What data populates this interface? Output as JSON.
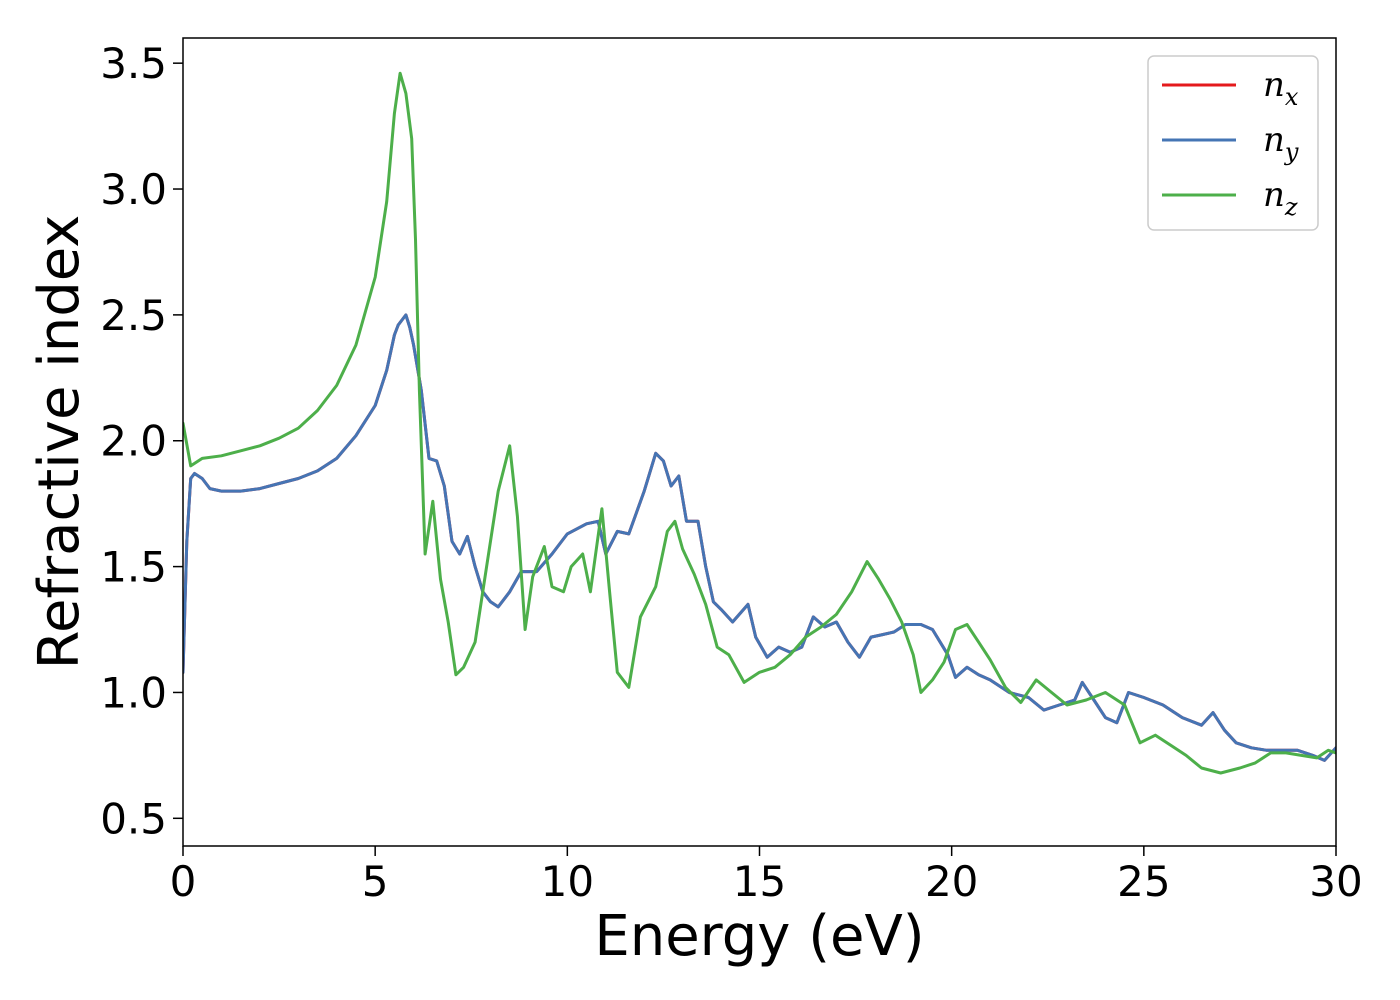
{
  "chart_data": {
    "type": "line",
    "title": "",
    "xlabel": "Energy (eV)",
    "ylabel": "Refractive index",
    "xlim": [
      0,
      30
    ],
    "ylim": [
      0.39,
      3.6
    ],
    "xticks": [
      0,
      5,
      10,
      15,
      20,
      25,
      30
    ],
    "yticks": [
      0.5,
      1.0,
      1.5,
      2.0,
      2.5,
      3.0,
      3.5
    ],
    "xtick_labels": [
      "0",
      "5",
      "10",
      "15",
      "20",
      "25",
      "30"
    ],
    "ytick_labels": [
      "0.5",
      "1.0",
      "1.5",
      "2.0",
      "2.5",
      "3.0",
      "3.5"
    ],
    "grid": false,
    "legend_position": "top-right",
    "series": [
      {
        "name": "n_x",
        "label_base": "n",
        "label_sub": "x",
        "color": "#e41a1c",
        "points": [
          [
            0,
            1.08
          ],
          [
            0.1,
            1.6
          ],
          [
            0.2,
            1.85
          ],
          [
            0.3,
            1.87
          ],
          [
            0.5,
            1.85
          ],
          [
            0.7,
            1.81
          ],
          [
            1.0,
            1.8
          ],
          [
            1.5,
            1.8
          ],
          [
            2.0,
            1.81
          ],
          [
            2.5,
            1.83
          ],
          [
            3.0,
            1.85
          ],
          [
            3.5,
            1.88
          ],
          [
            4.0,
            1.93
          ],
          [
            4.5,
            2.02
          ],
          [
            5.0,
            2.14
          ],
          [
            5.3,
            2.28
          ],
          [
            5.5,
            2.42
          ],
          [
            5.6,
            2.46
          ],
          [
            5.8,
            2.5
          ],
          [
            5.9,
            2.45
          ],
          [
            6.0,
            2.38
          ],
          [
            6.2,
            2.2
          ],
          [
            6.4,
            1.93
          ],
          [
            6.6,
            1.92
          ],
          [
            6.8,
            1.82
          ],
          [
            7.0,
            1.6
          ],
          [
            7.2,
            1.55
          ],
          [
            7.4,
            1.62
          ],
          [
            7.6,
            1.5
          ],
          [
            7.8,
            1.4
          ],
          [
            8.0,
            1.36
          ],
          [
            8.2,
            1.34
          ],
          [
            8.5,
            1.4
          ],
          [
            8.8,
            1.48
          ],
          [
            9.2,
            1.48
          ],
          [
            9.6,
            1.55
          ],
          [
            10.0,
            1.63
          ],
          [
            10.5,
            1.67
          ],
          [
            10.8,
            1.68
          ],
          [
            11.0,
            1.55
          ],
          [
            11.3,
            1.64
          ],
          [
            11.6,
            1.63
          ],
          [
            12.0,
            1.8
          ],
          [
            12.3,
            1.95
          ],
          [
            12.5,
            1.92
          ],
          [
            12.7,
            1.82
          ],
          [
            12.9,
            1.86
          ],
          [
            13.1,
            1.68
          ],
          [
            13.4,
            1.68
          ],
          [
            13.6,
            1.5
          ],
          [
            13.8,
            1.36
          ],
          [
            14.0,
            1.33
          ],
          [
            14.3,
            1.28
          ],
          [
            14.7,
            1.35
          ],
          [
            14.9,
            1.22
          ],
          [
            15.2,
            1.14
          ],
          [
            15.5,
            1.18
          ],
          [
            15.8,
            1.16
          ],
          [
            16.1,
            1.18
          ],
          [
            16.4,
            1.3
          ],
          [
            16.7,
            1.26
          ],
          [
            17.0,
            1.28
          ],
          [
            17.3,
            1.2
          ],
          [
            17.6,
            1.14
          ],
          [
            17.9,
            1.22
          ],
          [
            18.2,
            1.23
          ],
          [
            18.5,
            1.24
          ],
          [
            18.8,
            1.27
          ],
          [
            19.2,
            1.27
          ],
          [
            19.5,
            1.25
          ],
          [
            19.9,
            1.15
          ],
          [
            20.1,
            1.06
          ],
          [
            20.4,
            1.1
          ],
          [
            20.7,
            1.07
          ],
          [
            21.0,
            1.05
          ],
          [
            21.5,
            1.0
          ],
          [
            22.0,
            0.98
          ],
          [
            22.4,
            0.93
          ],
          [
            22.8,
            0.95
          ],
          [
            23.2,
            0.97
          ],
          [
            23.4,
            1.04
          ],
          [
            23.7,
            0.97
          ],
          [
            24.0,
            0.9
          ],
          [
            24.3,
            0.88
          ],
          [
            24.6,
            1.0
          ],
          [
            25.0,
            0.98
          ],
          [
            25.5,
            0.95
          ],
          [
            26.0,
            0.9
          ],
          [
            26.5,
            0.87
          ],
          [
            26.8,
            0.92
          ],
          [
            27.1,
            0.85
          ],
          [
            27.4,
            0.8
          ],
          [
            27.8,
            0.78
          ],
          [
            28.2,
            0.77
          ],
          [
            28.6,
            0.77
          ],
          [
            29.0,
            0.77
          ],
          [
            29.4,
            0.75
          ],
          [
            29.7,
            0.73
          ],
          [
            30.0,
            0.78
          ]
        ]
      },
      {
        "name": "n_y",
        "label_base": "n",
        "label_sub": "y",
        "color": "#4575b4",
        "points": [
          [
            0,
            1.08
          ],
          [
            0.1,
            1.6
          ],
          [
            0.2,
            1.85
          ],
          [
            0.3,
            1.87
          ],
          [
            0.5,
            1.85
          ],
          [
            0.7,
            1.81
          ],
          [
            1.0,
            1.8
          ],
          [
            1.5,
            1.8
          ],
          [
            2.0,
            1.81
          ],
          [
            2.5,
            1.83
          ],
          [
            3.0,
            1.85
          ],
          [
            3.5,
            1.88
          ],
          [
            4.0,
            1.93
          ],
          [
            4.5,
            2.02
          ],
          [
            5.0,
            2.14
          ],
          [
            5.3,
            2.28
          ],
          [
            5.5,
            2.42
          ],
          [
            5.6,
            2.46
          ],
          [
            5.8,
            2.5
          ],
          [
            5.9,
            2.45
          ],
          [
            6.0,
            2.38
          ],
          [
            6.2,
            2.2
          ],
          [
            6.4,
            1.93
          ],
          [
            6.6,
            1.92
          ],
          [
            6.8,
            1.82
          ],
          [
            7.0,
            1.6
          ],
          [
            7.2,
            1.55
          ],
          [
            7.4,
            1.62
          ],
          [
            7.6,
            1.5
          ],
          [
            7.8,
            1.4
          ],
          [
            8.0,
            1.36
          ],
          [
            8.2,
            1.34
          ],
          [
            8.5,
            1.4
          ],
          [
            8.8,
            1.48
          ],
          [
            9.2,
            1.48
          ],
          [
            9.6,
            1.55
          ],
          [
            10.0,
            1.63
          ],
          [
            10.5,
            1.67
          ],
          [
            10.8,
            1.68
          ],
          [
            11.0,
            1.55
          ],
          [
            11.3,
            1.64
          ],
          [
            11.6,
            1.63
          ],
          [
            12.0,
            1.8
          ],
          [
            12.3,
            1.95
          ],
          [
            12.5,
            1.92
          ],
          [
            12.7,
            1.82
          ],
          [
            12.9,
            1.86
          ],
          [
            13.1,
            1.68
          ],
          [
            13.4,
            1.68
          ],
          [
            13.6,
            1.5
          ],
          [
            13.8,
            1.36
          ],
          [
            14.0,
            1.33
          ],
          [
            14.3,
            1.28
          ],
          [
            14.7,
            1.35
          ],
          [
            14.9,
            1.22
          ],
          [
            15.2,
            1.14
          ],
          [
            15.5,
            1.18
          ],
          [
            15.8,
            1.16
          ],
          [
            16.1,
            1.18
          ],
          [
            16.4,
            1.3
          ],
          [
            16.7,
            1.26
          ],
          [
            17.0,
            1.28
          ],
          [
            17.3,
            1.2
          ],
          [
            17.6,
            1.14
          ],
          [
            17.9,
            1.22
          ],
          [
            18.2,
            1.23
          ],
          [
            18.5,
            1.24
          ],
          [
            18.8,
            1.27
          ],
          [
            19.2,
            1.27
          ],
          [
            19.5,
            1.25
          ],
          [
            19.9,
            1.15
          ],
          [
            20.1,
            1.06
          ],
          [
            20.4,
            1.1
          ],
          [
            20.7,
            1.07
          ],
          [
            21.0,
            1.05
          ],
          [
            21.5,
            1.0
          ],
          [
            22.0,
            0.98
          ],
          [
            22.4,
            0.93
          ],
          [
            22.8,
            0.95
          ],
          [
            23.2,
            0.97
          ],
          [
            23.4,
            1.04
          ],
          [
            23.7,
            0.97
          ],
          [
            24.0,
            0.9
          ],
          [
            24.3,
            0.88
          ],
          [
            24.6,
            1.0
          ],
          [
            25.0,
            0.98
          ],
          [
            25.5,
            0.95
          ],
          [
            26.0,
            0.9
          ],
          [
            26.5,
            0.87
          ],
          [
            26.8,
            0.92
          ],
          [
            27.1,
            0.85
          ],
          [
            27.4,
            0.8
          ],
          [
            27.8,
            0.78
          ],
          [
            28.2,
            0.77
          ],
          [
            28.6,
            0.77
          ],
          [
            29.0,
            0.77
          ],
          [
            29.4,
            0.75
          ],
          [
            29.7,
            0.73
          ],
          [
            30.0,
            0.78
          ]
        ]
      },
      {
        "name": "n_z",
        "label_base": "n",
        "label_sub": "z",
        "color": "#4daf4a",
        "points": [
          [
            0,
            2.07
          ],
          [
            0.2,
            1.9
          ],
          [
            0.5,
            1.93
          ],
          [
            1.0,
            1.94
          ],
          [
            1.5,
            1.96
          ],
          [
            2.0,
            1.98
          ],
          [
            2.5,
            2.01
          ],
          [
            3.0,
            2.05
          ],
          [
            3.5,
            2.12
          ],
          [
            4.0,
            2.22
          ],
          [
            4.5,
            2.38
          ],
          [
            5.0,
            2.65
          ],
          [
            5.3,
            2.95
          ],
          [
            5.5,
            3.3
          ],
          [
            5.65,
            3.46
          ],
          [
            5.8,
            3.38
          ],
          [
            5.95,
            3.2
          ],
          [
            6.05,
            2.8
          ],
          [
            6.15,
            2.2
          ],
          [
            6.3,
            1.55
          ],
          [
            6.5,
            1.76
          ],
          [
            6.7,
            1.45
          ],
          [
            6.9,
            1.28
          ],
          [
            7.1,
            1.07
          ],
          [
            7.3,
            1.1
          ],
          [
            7.6,
            1.2
          ],
          [
            7.9,
            1.5
          ],
          [
            8.2,
            1.8
          ],
          [
            8.5,
            1.98
          ],
          [
            8.7,
            1.7
          ],
          [
            8.9,
            1.25
          ],
          [
            9.1,
            1.46
          ],
          [
            9.4,
            1.58
          ],
          [
            9.6,
            1.42
          ],
          [
            9.9,
            1.4
          ],
          [
            10.1,
            1.5
          ],
          [
            10.4,
            1.55
          ],
          [
            10.6,
            1.4
          ],
          [
            10.9,
            1.73
          ],
          [
            11.1,
            1.4
          ],
          [
            11.3,
            1.08
          ],
          [
            11.6,
            1.02
          ],
          [
            11.9,
            1.3
          ],
          [
            12.3,
            1.42
          ],
          [
            12.6,
            1.64
          ],
          [
            12.8,
            1.68
          ],
          [
            13.0,
            1.57
          ],
          [
            13.3,
            1.47
          ],
          [
            13.6,
            1.35
          ],
          [
            13.9,
            1.18
          ],
          [
            14.2,
            1.15
          ],
          [
            14.6,
            1.04
          ],
          [
            15.0,
            1.08
          ],
          [
            15.4,
            1.1
          ],
          [
            15.8,
            1.15
          ],
          [
            16.2,
            1.22
          ],
          [
            16.6,
            1.26
          ],
          [
            17.0,
            1.31
          ],
          [
            17.4,
            1.4
          ],
          [
            17.8,
            1.52
          ],
          [
            18.1,
            1.45
          ],
          [
            18.4,
            1.37
          ],
          [
            18.7,
            1.28
          ],
          [
            19.0,
            1.15
          ],
          [
            19.2,
            1.0
          ],
          [
            19.5,
            1.05
          ],
          [
            19.8,
            1.12
          ],
          [
            20.1,
            1.25
          ],
          [
            20.4,
            1.27
          ],
          [
            20.7,
            1.2
          ],
          [
            21.0,
            1.13
          ],
          [
            21.4,
            1.02
          ],
          [
            21.8,
            0.96
          ],
          [
            22.2,
            1.05
          ],
          [
            22.6,
            1.0
          ],
          [
            23.0,
            0.95
          ],
          [
            23.5,
            0.97
          ],
          [
            24.0,
            1.0
          ],
          [
            24.5,
            0.95
          ],
          [
            24.9,
            0.8
          ],
          [
            25.3,
            0.83
          ],
          [
            25.7,
            0.79
          ],
          [
            26.1,
            0.75
          ],
          [
            26.5,
            0.7
          ],
          [
            27.0,
            0.68
          ],
          [
            27.5,
            0.7
          ],
          [
            27.9,
            0.72
          ],
          [
            28.3,
            0.76
          ],
          [
            28.7,
            0.76
          ],
          [
            29.1,
            0.75
          ],
          [
            29.5,
            0.74
          ],
          [
            29.8,
            0.77
          ],
          [
            30.0,
            0.76
          ]
        ]
      }
    ]
  }
}
